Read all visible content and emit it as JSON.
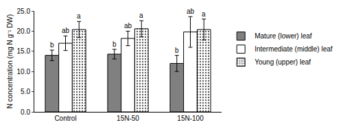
{
  "chart_data": {
    "type": "bar",
    "y_label": "N concentration (mg N g⁻¹ DW)",
    "categories": [
      "Control",
      "15N-50",
      "15N-100"
    ],
    "series": [
      {
        "name": "Mature (lower) leaf",
        "color": "#808080",
        "values": [
          14.0,
          14.3,
          12.0
        ],
        "errors": [
          1.3,
          1.2,
          2.0
        ],
        "annotations": [
          "b",
          "b",
          "b"
        ]
      },
      {
        "name": "Intermediate (middle) leaf",
        "color": "#ffffff",
        "values": [
          17.0,
          18.2,
          19.8
        ],
        "errors": [
          1.8,
          1.8,
          3.8
        ],
        "annotations": [
          "ab",
          "ab",
          "ab"
        ]
      },
      {
        "name": "Young (upper) leaf",
        "color": "#ffffff",
        "values": [
          20.4,
          20.6,
          20.4
        ],
        "errors": [
          2.0,
          2.0,
          2.6
        ],
        "annotations": [
          "a",
          "a",
          "a"
        ]
      }
    ],
    "ylim": [
      0,
      25
    ],
    "yticks": [
      {
        "value": 0,
        "label": "0.0"
      },
      {
        "value": 5,
        "label": "5.0"
      },
      {
        "value": 10,
        "label": "10.0"
      },
      {
        "value": 15,
        "label": "15.0"
      },
      {
        "value": 20,
        "label": "20.0"
      },
      {
        "value": 25,
        "label": "25.0"
      }
    ],
    "grid": false,
    "legend": "right"
  }
}
